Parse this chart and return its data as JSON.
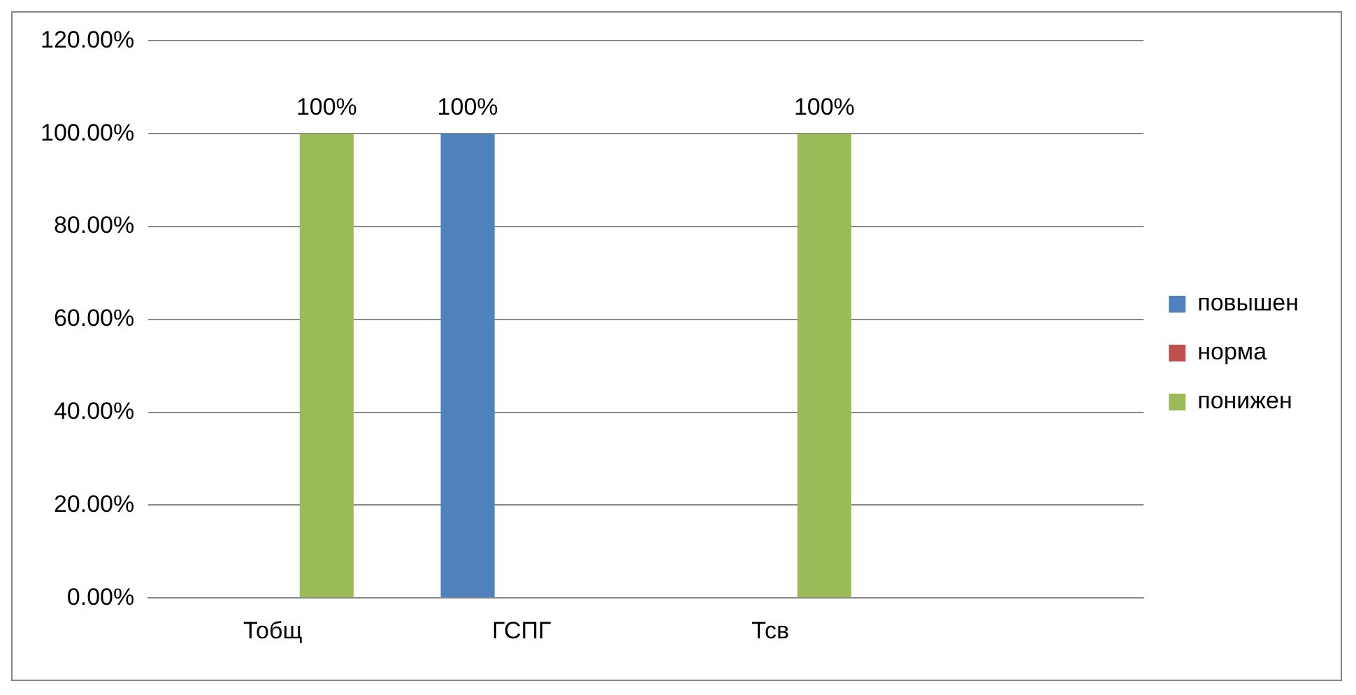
{
  "chart_data": {
    "type": "bar",
    "categories": [
      "Тобщ",
      "ГСПГ",
      "Тсв",
      null
    ],
    "series": [
      {
        "name": "повышен",
        "color": "#4f81bd",
        "values": [
          0,
          100,
          0,
          null
        ],
        "value_labels": [
          null,
          "100%",
          null,
          null
        ]
      },
      {
        "name": "норма",
        "color": "#c0504d",
        "values": [
          0,
          0,
          0,
          null
        ],
        "value_labels": [
          null,
          null,
          null,
          null
        ]
      },
      {
        "name": "понижен",
        "color": "#9bbb59",
        "values": [
          100,
          0,
          100,
          null
        ],
        "value_labels": [
          "100%",
          null,
          "100%",
          null
        ]
      }
    ],
    "ylim": [
      0,
      120
    ],
    "yticks": [
      {
        "value": 0,
        "label": "0.00%"
      },
      {
        "value": 20,
        "label": "20.00%"
      },
      {
        "value": 40,
        "label": "40.00%"
      },
      {
        "value": 60,
        "label": "60.00%"
      },
      {
        "value": 80,
        "label": "80.00%"
      },
      {
        "value": 100,
        "label": "100.00%"
      },
      {
        "value": 120,
        "label": "120.00%"
      }
    ],
    "grid": "y",
    "legend": "right"
  }
}
